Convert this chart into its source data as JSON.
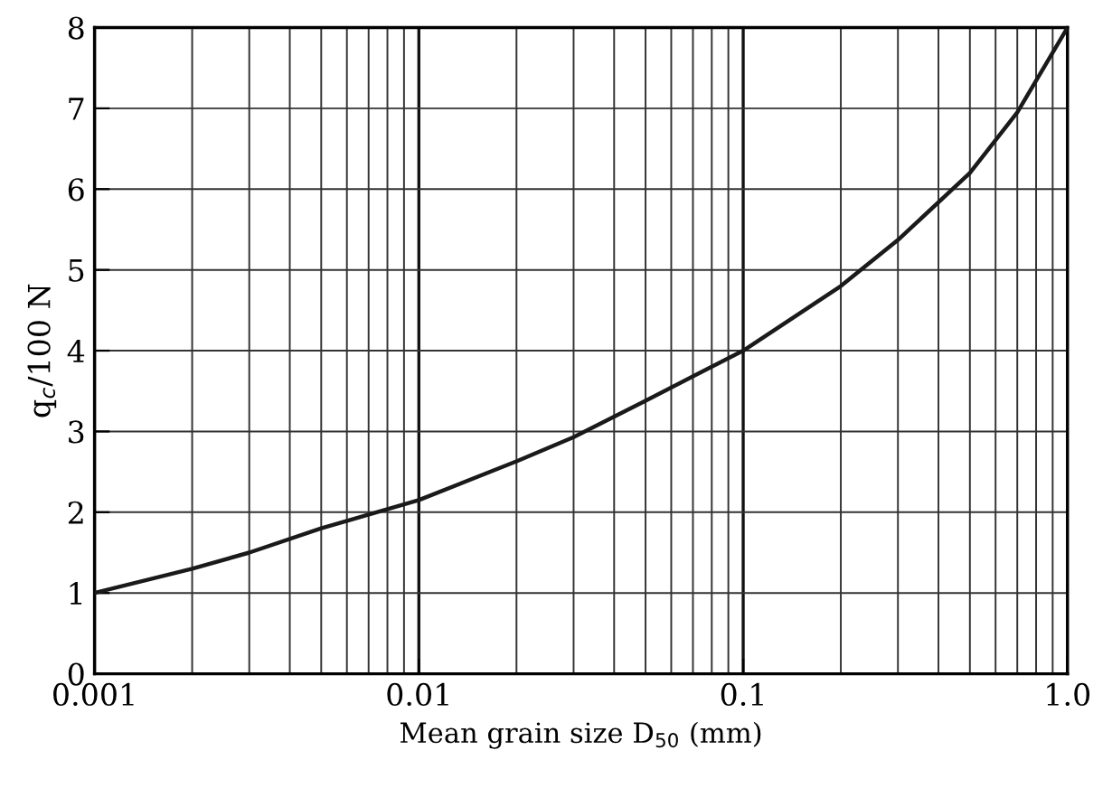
{
  "chart_data": {
    "type": "line",
    "xlabel": "Mean grain size D$_{50}$ (mm)",
    "ylabel": "q$_{c}$/100 N",
    "log": "x",
    "grid": true,
    "marker": "none",
    "line_style": "solid",
    "x": [
      0.001,
      0.002,
      0.003,
      0.005,
      0.01,
      0.02,
      0.03,
      0.05,
      0.1,
      0.2,
      0.3,
      0.5,
      0.7,
      1.0
    ],
    "series": [
      {
        "color": "#1a1a1a",
        "values": [
          1,
          1.3,
          1.5,
          1.8,
          2.15,
          2.63,
          2.93,
          3.38,
          4,
          4.8,
          5.37,
          6.2,
          6.95,
          8
        ]
      }
    ],
    "xlim": [
      0.001,
      1
    ],
    "xticks": [
      0.001,
      0.01,
      0.1,
      {
        "value": 1,
        "label": "1.0"
      }
    ],
    "ylim": [
      0,
      8
    ],
    "yticks": [
      0,
      1,
      2,
      3,
      4,
      5,
      6,
      7,
      8
    ]
  }
}
